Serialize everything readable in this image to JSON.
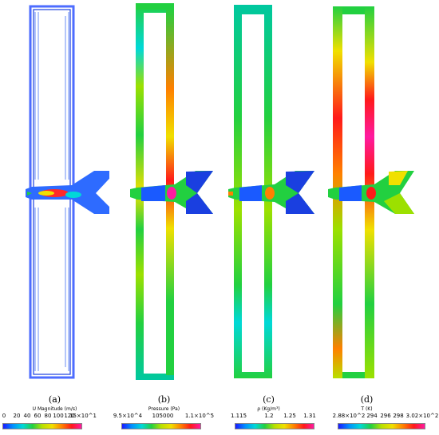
{
  "panels": [
    {
      "label": "(a)",
      "title": "U Magnitude (m/s)",
      "ticks": [
        "0",
        "20",
        "40",
        "60",
        "80",
        "100",
        "120",
        "15×10^1"
      ]
    },
    {
      "label": "(b)",
      "title": "Pressure (Pa)",
      "ticks": [
        "9.5×10^4",
        "105000",
        "1.1×10^5"
      ]
    },
    {
      "label": "(c)",
      "title": "ρ (Kg/m³)",
      "ticks": [
        "1.115",
        "1.2",
        "1.25",
        "1.31"
      ]
    },
    {
      "label": "(d)",
      "title": "T (K)",
      "ticks": [
        "2.88×10^2",
        "294",
        "296",
        "298",
        "3.02×10^2"
      ]
    }
  ],
  "colormap": [
    "#1a1aff",
    "#0090ff",
    "#00d8d8",
    "#22d040",
    "#b8e000",
    "#f0e000",
    "#ff8000",
    "#ff1a1a",
    "#ff1aa0"
  ]
}
